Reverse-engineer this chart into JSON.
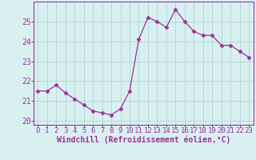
{
  "hours": [
    0,
    1,
    2,
    3,
    4,
    5,
    6,
    7,
    8,
    9,
    10,
    11,
    12,
    13,
    14,
    15,
    16,
    17,
    18,
    19,
    20,
    21,
    22,
    23
  ],
  "values": [
    21.5,
    21.5,
    21.8,
    21.4,
    21.1,
    20.8,
    20.5,
    20.4,
    20.3,
    20.6,
    21.5,
    24.1,
    25.2,
    25.0,
    24.7,
    25.6,
    25.0,
    24.5,
    24.3,
    24.3,
    23.8,
    23.8,
    23.5,
    23.2
  ],
  "line_color": "#993399",
  "marker": "D",
  "marker_size": 2.5,
  "bg_color": "#d8f0f0",
  "grid_color": "#b8d8d8",
  "xlabel": "Windchill (Refroidissement éolien,°C)",
  "xlabel_color": "#993399",
  "xlim": [
    -0.5,
    23.5
  ],
  "ylim": [
    19.8,
    26.0
  ],
  "yticks": [
    20,
    21,
    22,
    23,
    24,
    25
  ],
  "xticks": [
    0,
    1,
    2,
    3,
    4,
    5,
    6,
    7,
    8,
    9,
    10,
    11,
    12,
    13,
    14,
    15,
    16,
    17,
    18,
    19,
    20,
    21,
    22,
    23
  ],
  "tick_color": "#993399",
  "tick_fontsize": 6.5,
  "xlabel_fontsize": 7.0
}
